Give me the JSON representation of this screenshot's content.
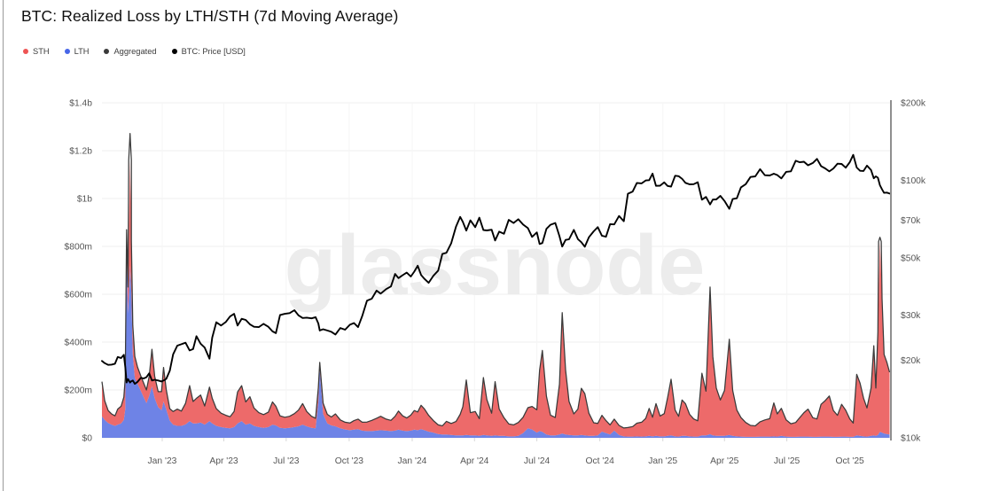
{
  "title": "BTC: Realized Loss by LTH/STH (7d Moving Average)",
  "watermark": "glassnode",
  "legend": {
    "items": [
      {
        "label": "STH",
        "color": "#ee5454"
      },
      {
        "label": "LTH",
        "color": "#4766e8"
      },
      {
        "label": "Aggregated",
        "color": "#3a3a3a"
      },
      {
        "label": "BTC: Price [USD]",
        "color": "#000000"
      }
    ]
  },
  "colors": {
    "sth_fill": "#ed6a6a",
    "lth_fill": "#6e83e6",
    "aggregated_line": "#3a3a3a",
    "price_line": "#000000",
    "grid": "#efefef",
    "grid_vertical": "#f5f5f5",
    "tick_mark": "#d8d8d8",
    "axis_text": "#565656",
    "watermark": "#ececec",
    "edge_line": "#8f8f8f"
  },
  "chart_data": {
    "type": "area",
    "stacked": true,
    "title": "BTC: Realized Loss by LTH/STH (7d Moving Average)",
    "series_names": [
      "STH",
      "LTH",
      "Aggregated",
      "BTC: Price [USD]"
    ],
    "domain": [
      "2022-10-05",
      "2025-11-30"
    ],
    "left_axis": {
      "max_m": 1400,
      "ticks": [
        {
          "value_m": 1400,
          "label": "$1.4b"
        },
        {
          "value_m": 1200,
          "label": "$1.2b"
        },
        {
          "value_m": 1000,
          "label": "$1b"
        },
        {
          "value_m": 800,
          "label": "$800m"
        },
        {
          "value_m": 600,
          "label": "$600m"
        },
        {
          "value_m": 400,
          "label": "$400m"
        },
        {
          "value_m": 200,
          "label": "$200m"
        },
        {
          "value_m": 0,
          "label": "$0"
        }
      ]
    },
    "right_axis": {
      "scale": "log",
      "range": [
        10000,
        200000
      ],
      "ticks": [
        {
          "value": 200000,
          "label": "$200k"
        },
        {
          "value": 100000,
          "label": "$100k"
        },
        {
          "value": 70000,
          "label": "$70k"
        },
        {
          "value": 50000,
          "label": "$50k"
        },
        {
          "value": 30000,
          "label": "$30k"
        },
        {
          "value": 20000,
          "label": "$20k"
        },
        {
          "value": 10000,
          "label": "$10k"
        }
      ]
    },
    "x_axis": {
      "ticks": [
        {
          "date": "2023-01-01",
          "label": "Jan '23"
        },
        {
          "date": "2023-04-01",
          "label": "Apr '23"
        },
        {
          "date": "2023-07-01",
          "label": "Jul '23"
        },
        {
          "date": "2023-10-01",
          "label": "Oct '23"
        },
        {
          "date": "2024-01-01",
          "label": "Jan '24"
        },
        {
          "date": "2024-04-01",
          "label": "Apr '24"
        },
        {
          "date": "2024-07-01",
          "label": "Jul '24"
        },
        {
          "date": "2024-10-01",
          "label": "Oct '24"
        },
        {
          "date": "2025-01-01",
          "label": "Jan '25"
        },
        {
          "date": "2025-04-01",
          "label": "Apr '25"
        },
        {
          "date": "2025-07-01",
          "label": "Jul '25"
        },
        {
          "date": "2025-10-01",
          "label": "Oct '25"
        }
      ]
    },
    "points_schema": [
      "date",
      "lth_loss_musd",
      "sth_loss_musd",
      "btc_price_usd"
    ],
    "points": [
      [
        "2022-10-05",
        90,
        145,
        19900
      ],
      [
        "2022-10-09",
        75,
        80,
        19500
      ],
      [
        "2022-10-14",
        62,
        52,
        19200
      ],
      [
        "2022-10-19",
        55,
        45,
        19250
      ],
      [
        "2022-10-24",
        50,
        42,
        19400
      ],
      [
        "2022-10-28",
        55,
        65,
        20600
      ],
      [
        "2022-11-02",
        60,
        72,
        20400
      ],
      [
        "2022-11-06",
        75,
        95,
        21000
      ],
      [
        "2022-11-08",
        120,
        130,
        18900
      ],
      [
        "2022-11-10",
        780,
        90,
        16400
      ],
      [
        "2022-11-12",
        520,
        110,
        16900
      ],
      [
        "2022-11-15",
        720,
        440,
        16400
      ],
      [
        "2022-11-17",
        600,
        225,
        16600
      ],
      [
        "2022-11-19",
        350,
        120,
        16700
      ],
      [
        "2022-11-22",
        250,
        90,
        16200
      ],
      [
        "2022-11-26",
        225,
        70,
        16500
      ],
      [
        "2022-12-01",
        195,
        62,
        17100
      ],
      [
        "2022-12-05",
        170,
        58,
        17000
      ],
      [
        "2022-12-09",
        145,
        55,
        17200
      ],
      [
        "2022-12-13",
        175,
        82,
        17800
      ],
      [
        "2022-12-17",
        215,
        155,
        16700
      ],
      [
        "2022-12-21",
        165,
        92,
        16800
      ],
      [
        "2022-12-26",
        128,
        65,
        16700
      ],
      [
        "2022-12-31",
        115,
        78,
        16550
      ],
      [
        "2023-01-03",
        152,
        142,
        16700
      ],
      [
        "2023-01-07",
        118,
        82,
        16950
      ],
      [
        "2023-01-12",
        72,
        50,
        18200
      ],
      [
        "2023-01-17",
        55,
        55,
        21100
      ],
      [
        "2023-01-23",
        50,
        70,
        22800
      ],
      [
        "2023-01-29",
        50,
        62,
        23100
      ],
      [
        "2023-02-04",
        56,
        88,
        23400
      ],
      [
        "2023-02-10",
        70,
        148,
        21850
      ],
      [
        "2023-02-15",
        60,
        92,
        22100
      ],
      [
        "2023-02-20",
        60,
        105,
        24800
      ],
      [
        "2023-02-26",
        64,
        115,
        23200
      ],
      [
        "2023-03-04",
        55,
        78,
        22400
      ],
      [
        "2023-03-11",
        70,
        142,
        20300
      ],
      [
        "2023-03-15",
        60,
        105,
        24500
      ],
      [
        "2023-03-21",
        50,
        72,
        28100
      ],
      [
        "2023-03-28",
        45,
        58,
        27300
      ],
      [
        "2023-04-04",
        42,
        52,
        28200
      ],
      [
        "2023-04-10",
        40,
        48,
        29600
      ],
      [
        "2023-04-16",
        45,
        65,
        30300
      ],
      [
        "2023-04-21",
        60,
        132,
        27300
      ],
      [
        "2023-04-27",
        70,
        148,
        29000
      ],
      [
        "2023-05-03",
        55,
        95,
        28700
      ],
      [
        "2023-05-09",
        60,
        112,
        27600
      ],
      [
        "2023-05-15",
        50,
        75,
        27000
      ],
      [
        "2023-05-22",
        45,
        60,
        26900
      ],
      [
        "2023-05-29",
        42,
        55,
        27700
      ],
      [
        "2023-06-05",
        45,
        62,
        27000
      ],
      [
        "2023-06-11",
        55,
        95,
        25900
      ],
      [
        "2023-06-16",
        52,
        80,
        25500
      ],
      [
        "2023-06-22",
        42,
        50,
        30000
      ],
      [
        "2023-06-29",
        40,
        46,
        30300
      ],
      [
        "2023-07-06",
        42,
        48,
        30500
      ],
      [
        "2023-07-13",
        45,
        56,
        31300
      ],
      [
        "2023-07-19",
        48,
        68,
        29900
      ],
      [
        "2023-07-25",
        55,
        88,
        29200
      ],
      [
        "2023-07-31",
        48,
        62,
        29300
      ],
      [
        "2023-08-07",
        42,
        48,
        29100
      ],
      [
        "2023-08-13",
        40,
        42,
        29400
      ],
      [
        "2023-08-17",
        150,
        60,
        27800
      ],
      [
        "2023-08-19",
        285,
        30,
        26100
      ],
      [
        "2023-08-24",
        100,
        45,
        26400
      ],
      [
        "2023-08-30",
        60,
        38,
        26100
      ],
      [
        "2023-09-05",
        52,
        35,
        25800
      ],
      [
        "2023-09-11",
        48,
        52,
        25200
      ],
      [
        "2023-09-18",
        40,
        35,
        26700
      ],
      [
        "2023-09-25",
        35,
        30,
        26300
      ],
      [
        "2023-10-02",
        32,
        30,
        27500
      ],
      [
        "2023-10-08",
        34,
        38,
        27900
      ],
      [
        "2023-10-14",
        36,
        42,
        26900
      ],
      [
        "2023-10-20",
        30,
        35,
        29700
      ],
      [
        "2023-10-27",
        28,
        38,
        34100
      ],
      [
        "2023-11-03",
        28,
        45,
        34700
      ],
      [
        "2023-11-10",
        30,
        52,
        37300
      ],
      [
        "2023-11-16",
        32,
        58,
        36300
      ],
      [
        "2023-11-24",
        30,
        48,
        37800
      ],
      [
        "2023-12-01",
        28,
        45,
        38700
      ],
      [
        "2023-12-07",
        30,
        60,
        43300
      ],
      [
        "2023-12-12",
        34,
        78,
        41700
      ],
      [
        "2023-12-18",
        30,
        62,
        42800
      ],
      [
        "2023-12-24",
        28,
        55,
        43800
      ],
      [
        "2023-12-30",
        30,
        65,
        42300
      ],
      [
        "2024-01-04",
        34,
        80,
        44200
      ],
      [
        "2024-01-09",
        32,
        76,
        46600
      ],
      [
        "2024-01-14",
        36,
        100,
        42900
      ],
      [
        "2024-01-19",
        32,
        88,
        41400
      ],
      [
        "2024-01-25",
        26,
        68,
        40000
      ],
      [
        "2024-02-01",
        22,
        50,
        42600
      ],
      [
        "2024-02-08",
        16,
        38,
        44600
      ],
      [
        "2024-02-14",
        14,
        36,
        51800
      ],
      [
        "2024-02-20",
        14,
        55,
        52300
      ],
      [
        "2024-02-27",
        12,
        48,
        57000
      ],
      [
        "2024-03-05",
        10,
        58,
        66100
      ],
      [
        "2024-03-11",
        10,
        88,
        72100
      ],
      [
        "2024-03-15",
        10,
        120,
        69000
      ],
      [
        "2024-03-20",
        12,
        230,
        63800
      ],
      [
        "2024-03-26",
        10,
        95,
        69900
      ],
      [
        "2024-04-02",
        10,
        100,
        65800
      ],
      [
        "2024-04-08",
        8,
        72,
        71600
      ],
      [
        "2024-04-14",
        12,
        240,
        64100
      ],
      [
        "2024-04-19",
        10,
        150,
        63900
      ],
      [
        "2024-04-26",
        8,
        95,
        64300
      ],
      [
        "2024-05-01",
        10,
        225,
        58400
      ],
      [
        "2024-05-07",
        8,
        112,
        63200
      ],
      [
        "2024-05-14",
        8,
        76,
        62000
      ],
      [
        "2024-05-21",
        6,
        52,
        70200
      ],
      [
        "2024-05-28",
        6,
        48,
        68300
      ],
      [
        "2024-06-04",
        8,
        56,
        70600
      ],
      [
        "2024-06-11",
        20,
        66,
        67300
      ],
      [
        "2024-06-18",
        40,
        86,
        65200
      ],
      [
        "2024-06-24",
        35,
        96,
        60300
      ],
      [
        "2024-07-01",
        22,
        95,
        62800
      ],
      [
        "2024-07-05",
        28,
        255,
        56600
      ],
      [
        "2024-07-09",
        25,
        340,
        57100
      ],
      [
        "2024-07-15",
        14,
        160,
        64800
      ],
      [
        "2024-07-21",
        10,
        85,
        67200
      ],
      [
        "2024-07-28",
        10,
        75,
        68300
      ],
      [
        "2024-08-03",
        14,
        210,
        60700
      ],
      [
        "2024-08-07",
        18,
        505,
        55300
      ],
      [
        "2024-08-12",
        14,
        270,
        58700
      ],
      [
        "2024-08-17",
        12,
        140,
        59000
      ],
      [
        "2024-08-24",
        10,
        90,
        64200
      ],
      [
        "2024-08-30",
        10,
        110,
        59100
      ],
      [
        "2024-09-04",
        12,
        195,
        57500
      ],
      [
        "2024-09-09",
        10,
        175,
        55200
      ],
      [
        "2024-09-15",
        8,
        95,
        60100
      ],
      [
        "2024-09-22",
        8,
        55,
        63400
      ],
      [
        "2024-09-28",
        10,
        50,
        65800
      ],
      [
        "2024-10-04",
        26,
        68,
        60900
      ],
      [
        "2024-10-10",
        20,
        52,
        60400
      ],
      [
        "2024-10-16",
        14,
        40,
        67600
      ],
      [
        "2024-10-22",
        30,
        48,
        67400
      ],
      [
        "2024-10-29",
        12,
        40,
        72700
      ],
      [
        "2024-11-05",
        6,
        35,
        69400
      ],
      [
        "2024-11-11",
        5,
        38,
        88700
      ],
      [
        "2024-11-18",
        5,
        42,
        90500
      ],
      [
        "2024-11-24",
        6,
        55,
        97700
      ],
      [
        "2024-12-01",
        5,
        60,
        97300
      ],
      [
        "2024-12-07",
        6,
        75,
        99900
      ],
      [
        "2024-12-12",
        8,
        115,
        100100
      ],
      [
        "2024-12-17",
        6,
        80,
        106200
      ],
      [
        "2024-12-22",
        8,
        135,
        95200
      ],
      [
        "2024-12-28",
        6,
        85,
        95300
      ],
      [
        "2025-01-03",
        6,
        95,
        98200
      ],
      [
        "2025-01-08",
        8,
        160,
        95100
      ],
      [
        "2025-01-13",
        10,
        235,
        94500
      ],
      [
        "2025-01-19",
        6,
        110,
        104200
      ],
      [
        "2025-01-24",
        5,
        85,
        103800
      ],
      [
        "2025-01-29",
        8,
        150,
        101400
      ],
      [
        "2025-02-03",
        8,
        135,
        97800
      ],
      [
        "2025-02-09",
        6,
        92,
        96500
      ],
      [
        "2025-02-15",
        5,
        74,
        96600
      ],
      [
        "2025-02-21",
        5,
        66,
        98300
      ],
      [
        "2025-02-27",
        10,
        260,
        84100
      ],
      [
        "2025-03-05",
        10,
        185,
        86200
      ],
      [
        "2025-03-11",
        15,
        615,
        80600
      ],
      [
        "2025-03-15",
        10,
        330,
        84200
      ],
      [
        "2025-03-20",
        8,
        200,
        84300
      ],
      [
        "2025-03-26",
        8,
        150,
        87000
      ],
      [
        "2025-04-01",
        8,
        190,
        83100
      ],
      [
        "2025-04-08",
        12,
        400,
        77500
      ],
      [
        "2025-04-13",
        8,
        190,
        84600
      ],
      [
        "2025-04-19",
        6,
        110,
        85200
      ],
      [
        "2025-04-25",
        5,
        80,
        93900
      ],
      [
        "2025-05-02",
        4,
        60,
        96600
      ],
      [
        "2025-05-09",
        4,
        48,
        103000
      ],
      [
        "2025-05-16",
        4,
        46,
        103600
      ],
      [
        "2025-05-23",
        5,
        62,
        110500
      ],
      [
        "2025-05-30",
        5,
        70,
        104700
      ],
      [
        "2025-06-06",
        5,
        75,
        104400
      ],
      [
        "2025-06-12",
        6,
        140,
        106100
      ],
      [
        "2025-06-17",
        5,
        95,
        104800
      ],
      [
        "2025-06-23",
        8,
        115,
        101700
      ],
      [
        "2025-06-30",
        5,
        70,
        107900
      ],
      [
        "2025-07-07",
        4,
        55,
        108400
      ],
      [
        "2025-07-14",
        4,
        60,
        119100
      ],
      [
        "2025-07-20",
        5,
        80,
        117500
      ],
      [
        "2025-07-26",
        5,
        100,
        118100
      ],
      [
        "2025-08-01",
        5,
        115,
        114400
      ],
      [
        "2025-08-08",
        4,
        80,
        116800
      ],
      [
        "2025-08-14",
        4,
        75,
        121100
      ],
      [
        "2025-08-20",
        5,
        135,
        113600
      ],
      [
        "2025-08-26",
        5,
        150,
        111300
      ],
      [
        "2025-09-01",
        5,
        170,
        108300
      ],
      [
        "2025-09-07",
        4,
        110,
        111200
      ],
      [
        "2025-09-13",
        4,
        90,
        116000
      ],
      [
        "2025-09-19",
        5,
        135,
        115800
      ],
      [
        "2025-09-25",
        5,
        110,
        112000
      ],
      [
        "2025-10-01",
        4,
        75,
        117600
      ],
      [
        "2025-10-06",
        4,
        58,
        125600
      ],
      [
        "2025-10-11",
        10,
        255,
        112100
      ],
      [
        "2025-10-16",
        8,
        220,
        108900
      ],
      [
        "2025-10-21",
        6,
        160,
        108700
      ],
      [
        "2025-10-26",
        5,
        120,
        114000
      ],
      [
        "2025-11-01",
        8,
        200,
        109600
      ],
      [
        "2025-11-05",
        10,
        375,
        101800
      ],
      [
        "2025-11-08",
        8,
        200,
        103600
      ],
      [
        "2025-11-11",
        12,
        430,
        102400
      ],
      [
        "2025-11-14",
        25,
        795,
        95700
      ],
      [
        "2025-11-17",
        22,
        560,
        92200
      ],
      [
        "2025-11-20",
        18,
        330,
        89400
      ],
      [
        "2025-11-24",
        16,
        300,
        89600
      ],
      [
        "2025-11-28",
        14,
        260,
        88800
      ]
    ],
    "aggregated_peak_overrides": [
      [
        "2022-11-15",
        1272
      ],
      [
        "2025-11-14",
        838
      ]
    ]
  }
}
